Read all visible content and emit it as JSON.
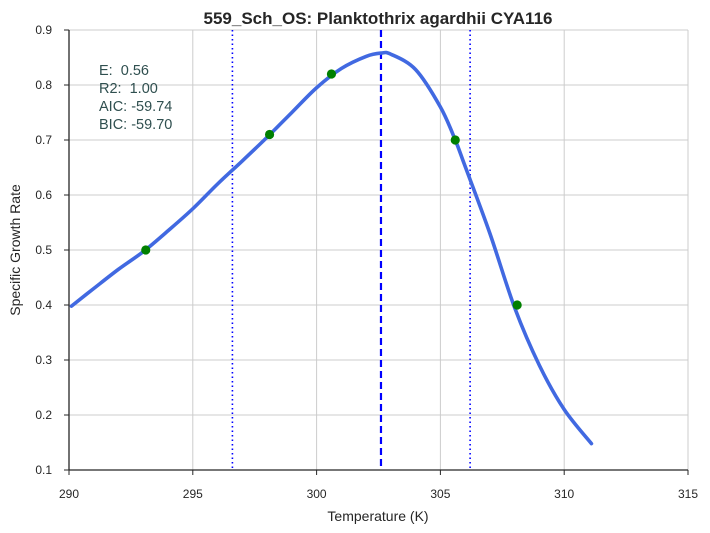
{
  "chart_data": {
    "type": "line",
    "title": "559_Sch_OS: Planktothrix agardhii CYA116",
    "xlabel": "Temperature (K)",
    "ylabel": "Specific Growth Rate",
    "xlim": [
      290,
      315
    ],
    "ylim": [
      0.1,
      0.9
    ],
    "xticks": [
      290,
      295,
      300,
      305,
      310,
      315
    ],
    "yticks": [
      0.1,
      0.2,
      0.3,
      0.4,
      0.5,
      0.6,
      0.7,
      0.8,
      0.9
    ],
    "grid": true,
    "fit_curve": {
      "color": "#4169e1",
      "x": [
        290.1,
        291,
        292,
        293,
        294,
        295,
        296,
        297,
        298,
        299,
        300,
        301,
        302,
        302.6,
        303,
        304,
        305,
        305.6,
        306,
        307,
        308,
        309,
        310,
        311.1
      ],
      "y": [
        0.398,
        0.43,
        0.465,
        0.497,
        0.535,
        0.575,
        0.62,
        0.662,
        0.705,
        0.75,
        0.795,
        0.83,
        0.852,
        0.858,
        0.856,
        0.828,
        0.76,
        0.7,
        0.652,
        0.53,
        0.395,
        0.29,
        0.21,
        0.148
      ]
    },
    "observed_points": {
      "color": "#008000",
      "x": [
        293.1,
        298.1,
        300.6,
        305.6,
        308.1
      ],
      "y": [
        0.5,
        0.71,
        0.82,
        0.7,
        0.4
      ]
    },
    "vlines": [
      {
        "x": 296.6,
        "style": "dotted",
        "color": "#0000ff"
      },
      {
        "x": 302.6,
        "style": "dashed",
        "color": "#0000ff"
      },
      {
        "x": 306.2,
        "style": "dotted",
        "color": "#0000ff"
      }
    ],
    "annotation": [
      "E:  0.56",
      "R2:  1.00",
      "AIC: -59.74",
      "BIC: -59.70"
    ]
  }
}
